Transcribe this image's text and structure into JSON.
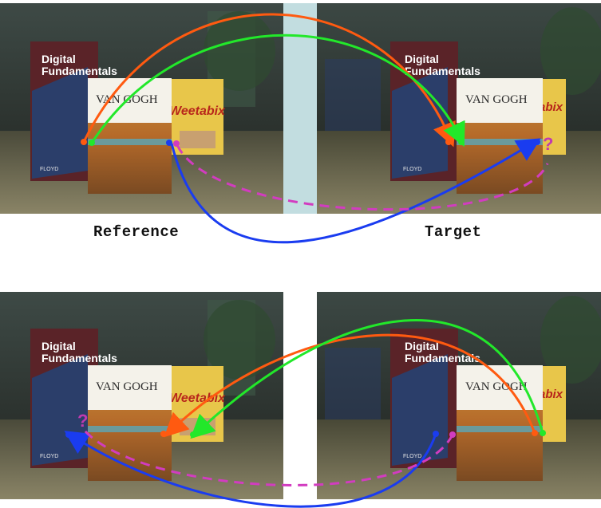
{
  "captions": {
    "reference": "Reference",
    "target": "Target"
  },
  "book": {
    "title_line1": "Digital",
    "title_line2": "Fundamentals",
    "author": "FLOYD"
  },
  "painting_book": {
    "title": "VAN GOGH"
  },
  "cereal_box": {
    "brand": "Weetabix",
    "brand_partial": "abix"
  },
  "markers": {
    "question": "?"
  },
  "colors": {
    "orange_arrow": "#ff5a10",
    "green_arrow": "#22e82a",
    "blue_arrow": "#1a3cf0",
    "magenta_dashed": "#d23cc0",
    "divider": "#c2dde0"
  }
}
